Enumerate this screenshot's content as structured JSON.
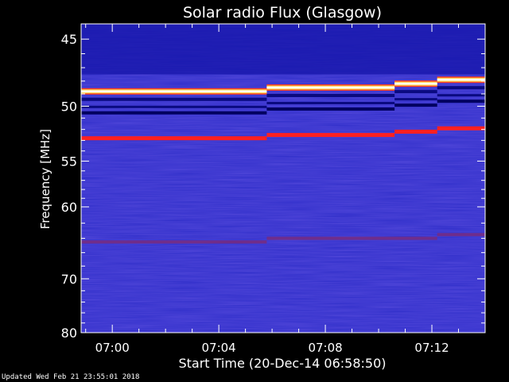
{
  "chart_data": {
    "type": "heatmap",
    "title": "Solar radio Flux (Glasgow)",
    "xlabel": "Start Time (20-Dec-14 06:58:50)",
    "ylabel": "Frequency [MHz]",
    "x_start_minutes": -1.17,
    "x_end_minutes": 14.0,
    "x_ticks": [
      {
        "minute": 0,
        "label": "07:00"
      },
      {
        "minute": 4,
        "label": "07:04"
      },
      {
        "minute": 8,
        "label": "07:08"
      },
      {
        "minute": 12,
        "label": "07:12"
      }
    ],
    "ylim": [
      44,
      80
    ],
    "y_ticks": [
      45,
      50,
      55,
      60,
      70,
      80
    ],
    "y_scale": "reciprocal (frequency increases downward)",
    "background_color": "#2c2cc8",
    "bands": [
      {
        "name": "bright",
        "color": "#ffffff",
        "segments": [
          {
            "from": -1.17,
            "to": 5.8,
            "freq": 48.8
          },
          {
            "from": 5.8,
            "to": 10.6,
            "freq": 48.5
          },
          {
            "from": 10.6,
            "to": 12.2,
            "freq": 48.2
          },
          {
            "from": 12.2,
            "to": 14.0,
            "freq": 47.9
          }
        ]
      },
      {
        "name": "red",
        "color": "#ff2020",
        "segments": [
          {
            "from": -1.17,
            "to": 5.8,
            "freq": 52.8
          },
          {
            "from": 5.8,
            "to": 10.6,
            "freq": 52.5
          },
          {
            "from": 10.6,
            "to": 12.2,
            "freq": 52.2
          },
          {
            "from": 12.2,
            "to": 14.0,
            "freq": 51.9
          }
        ]
      },
      {
        "name": "faint-red",
        "color": "#7a2a7a",
        "segments": [
          {
            "from": -1.17,
            "to": 5.8,
            "freq": 64.5
          },
          {
            "from": 5.8,
            "to": 12.2,
            "freq": 64.0
          },
          {
            "from": 12.2,
            "to": 14.0,
            "freq": 63.5
          }
        ]
      }
    ]
  },
  "footer": {
    "updated": "Updated Wed Feb 21 23:55:01 2018"
  }
}
